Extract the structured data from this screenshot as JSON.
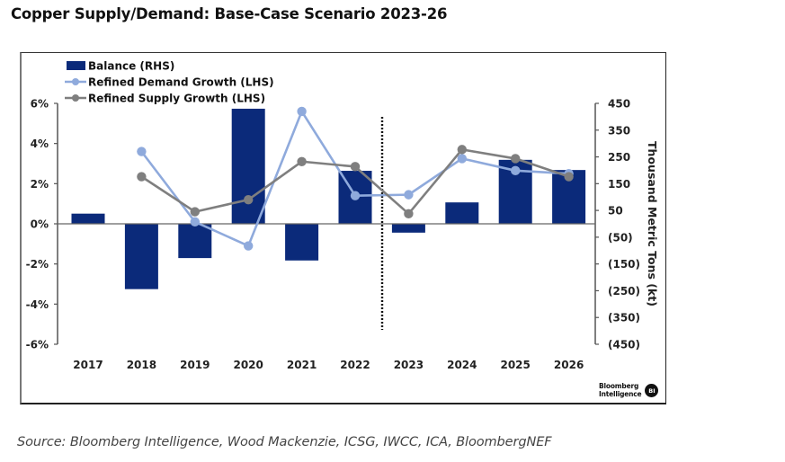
{
  "title": "Copper Supply/Demand: Base-Case Scenario 2023-26",
  "source": "Source: Bloomberg Intelligence, Wood Mackenzie, ICSG, IWCC, ICA, BloombergNEF",
  "brand": {
    "line1": "Bloomberg",
    "line2": "Intelligence",
    "badge": "BI"
  },
  "colors": {
    "balance": "#0b2a7a",
    "demand": "#8faadc",
    "supply": "#7f7f7f",
    "axis": "#555555"
  },
  "chart_data": {
    "type": "bar+line",
    "title": "Copper Supply/Demand: Base-Case Scenario 2023-26",
    "categories": [
      "2017",
      "2018",
      "2019",
      "2020",
      "2021",
      "2022",
      "2023",
      "2024",
      "2025",
      "2026"
    ],
    "series": [
      {
        "name": "Balance (RHS)",
        "type": "bar",
        "axis": "right",
        "values": [
          38,
          -244,
          -128,
          430,
          -137,
          198,
          -33,
          80,
          239,
          201
        ]
      },
      {
        "name": "Refined Demand Growth (LHS)",
        "type": "line",
        "axis": "left",
        "values": [
          null,
          3.6,
          0.1,
          -1.1,
          5.6,
          1.4,
          1.45,
          3.25,
          2.65,
          2.5
        ]
      },
      {
        "name": "Refined Supply Growth (LHS)",
        "type": "line",
        "axis": "left",
        "values": [
          null,
          2.35,
          0.6,
          1.2,
          3.1,
          2.85,
          0.5,
          3.7,
          3.25,
          2.35
        ]
      }
    ],
    "left_axis": {
      "label": "",
      "ylim": [
        -6,
        6
      ],
      "ticks": [
        6,
        4,
        2,
        0,
        -2,
        -4,
        -6
      ],
      "tick_labels": [
        "6%",
        "4%",
        "2%",
        "0%",
        "-2%",
        "-4%",
        "-6%"
      ]
    },
    "right_axis": {
      "label": "Thousand Metric Tons (kt)",
      "ylim": [
        -450,
        450
      ],
      "ticks": [
        450,
        350,
        250,
        150,
        50,
        -50,
        -150,
        -250,
        -350,
        -450
      ],
      "tick_labels": [
        "450",
        "350",
        "250",
        "150",
        "50",
        "(50)",
        "(150)",
        "(250)",
        "(350)",
        "(450)"
      ]
    },
    "xlabel": "",
    "forecast_divider_between": [
      "2022",
      "2023"
    ],
    "legend": {
      "position": "top-left",
      "entries": [
        "Balance (RHS)",
        "Refined Demand Growth (LHS)",
        "Refined Supply Growth (LHS)"
      ]
    },
    "grid": false
  }
}
